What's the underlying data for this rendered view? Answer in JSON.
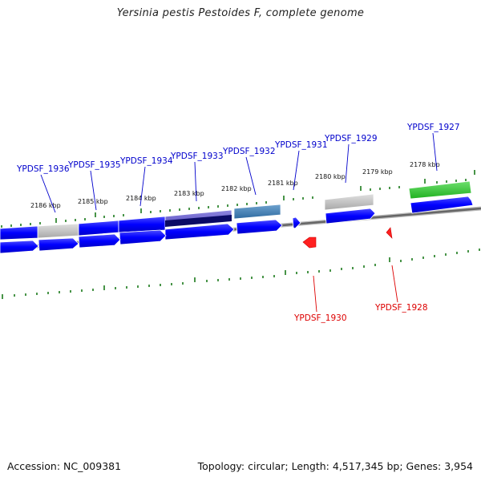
{
  "title": "Yersinia pestis Pestoides F, complete genome",
  "footer": {
    "accession": "Accession: NC_009381",
    "summary": "Topology: circular; Length: 4,517,345 bp; Genes: 3,954"
  },
  "colors": {
    "forward_label": "#0000cc",
    "reverse_label": "#dd0000",
    "cds_forward": "#0000ff",
    "cds_reverse": "#ff0000",
    "backbone": "#777777",
    "tick": "#006600"
  },
  "kbp_markers": [
    {
      "label": "2178 kbp"
    },
    {
      "label": "2179 kbp"
    },
    {
      "label": "2180 kbp"
    },
    {
      "label": "2181 kbp"
    },
    {
      "label": "2182 kbp"
    },
    {
      "label": "2183 kbp"
    },
    {
      "label": "2184 kbp"
    },
    {
      "label": "2185 kbp"
    },
    {
      "label": "2186 kbp"
    }
  ],
  "forward_genes": [
    {
      "label": "YPDSF_1927"
    },
    {
      "label": "YPDSF_1929"
    },
    {
      "label": "YPDSF_1931"
    },
    {
      "label": "YPDSF_1932"
    },
    {
      "label": "YPDSF_1933"
    },
    {
      "label": "YPDSF_1934"
    },
    {
      "label": "YPDSF_1935"
    },
    {
      "label": "YPDSF_1936"
    }
  ],
  "reverse_genes": [
    {
      "label": "YPDSF_1928"
    },
    {
      "label": "YPDSF_1930"
    }
  ]
}
